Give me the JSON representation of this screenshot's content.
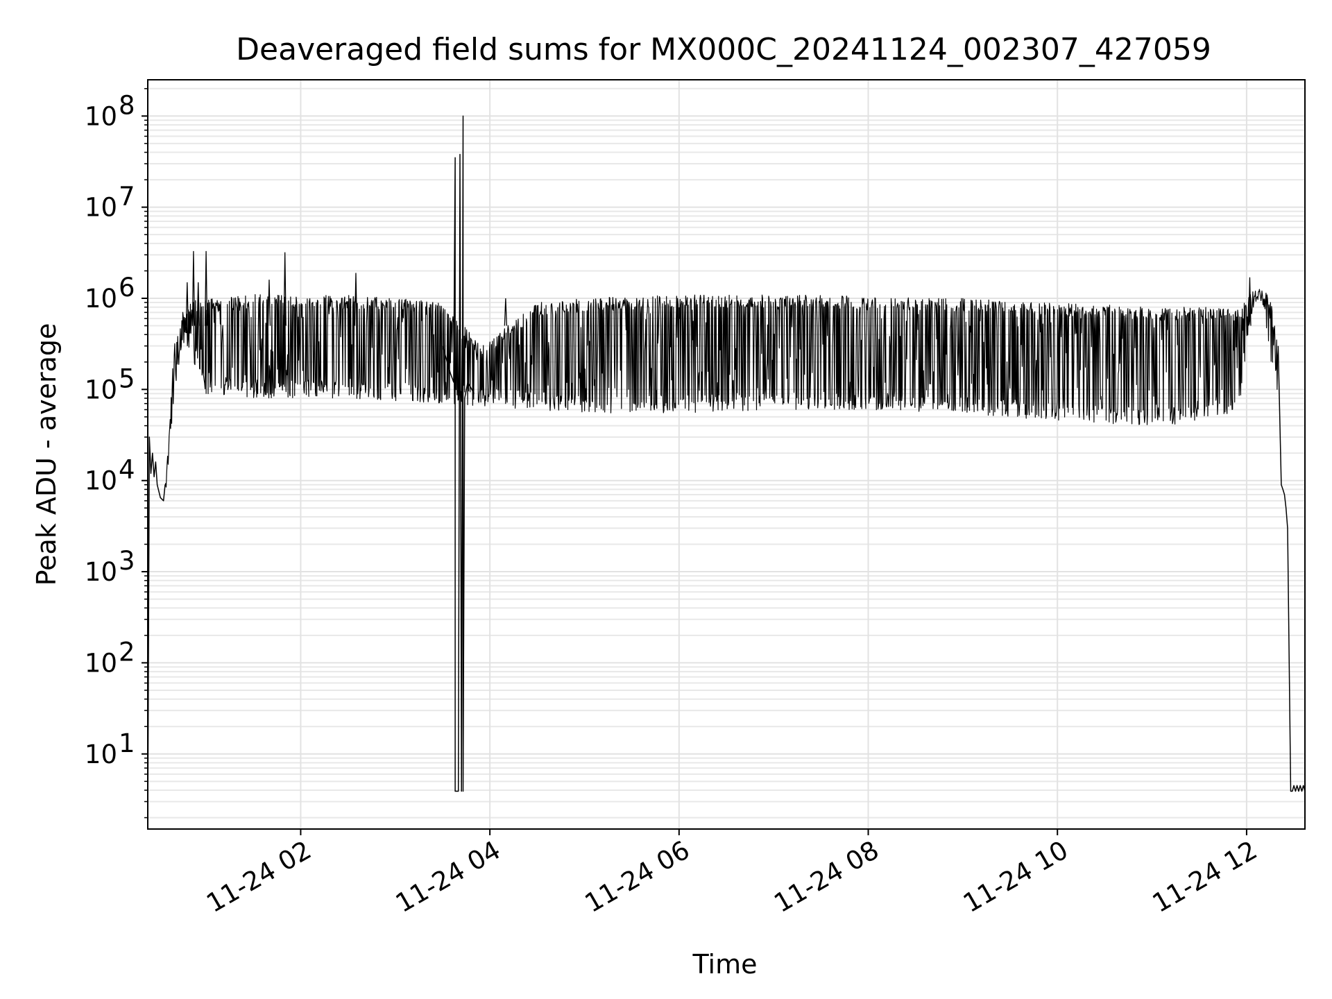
{
  "chart_data": {
    "type": "line",
    "title": "Deaveraged field sums for MX000C_20241124_002307_427059",
    "xlabel": "Time",
    "ylabel": "Peak ADU - average",
    "yscale": "log",
    "grid": true,
    "grid_minor": true,
    "line_color": "#000000",
    "xlim": [
      "2024-11-24 00:23",
      "2024-11-24 12:37"
    ],
    "ylim": [
      1.5,
      250000000
    ],
    "x_ticks": [
      {
        "value": "2024-11-24 02:00",
        "label": "11-24 02"
      },
      {
        "value": "2024-11-24 04:00",
        "label": "11-24 04"
      },
      {
        "value": "2024-11-24 06:00",
        "label": "11-24 06"
      },
      {
        "value": "2024-11-24 08:00",
        "label": "11-24 08"
      },
      {
        "value": "2024-11-24 10:00",
        "label": "11-24 10"
      },
      {
        "value": "2024-11-24 12:00",
        "label": "11-24 12"
      }
    ],
    "y_ticks": [
      {
        "value": 10,
        "base": "10",
        "exp": "1"
      },
      {
        "value": 100,
        "base": "10",
        "exp": "2"
      },
      {
        "value": 1000,
        "base": "10",
        "exp": "3"
      },
      {
        "value": 10000,
        "base": "10",
        "exp": "4"
      },
      {
        "value": 100000,
        "base": "10",
        "exp": "5"
      },
      {
        "value": 1000000,
        "base": "10",
        "exp": "6"
      },
      {
        "value": 10000000,
        "base": "10",
        "exp": "7"
      },
      {
        "value": 100000000,
        "base": "10",
        "exp": "8"
      }
    ],
    "series": [
      {
        "envelope": {
          "x": [
            "2024-11-24 00:34",
            "2024-11-24 00:40",
            "2024-11-24 00:45",
            "2024-11-24 00:50",
            "2024-11-24 00:55",
            "2024-11-24 01:00",
            "2024-11-24 01:30",
            "2024-11-24 02:00",
            "2024-11-24 02:30",
            "2024-11-24 03:00",
            "2024-11-24 03:30",
            "2024-11-24 03:55",
            "2024-11-24 04:30",
            "2024-11-24 05:00",
            "2024-11-24 06:00",
            "2024-11-24 07:00",
            "2024-11-24 08:00",
            "2024-11-24 09:00",
            "2024-11-24 10:00",
            "2024-11-24 10:30",
            "2024-11-24 11:00",
            "2024-11-24 11:30",
            "2024-11-24 11:55",
            "2024-11-24 12:03",
            "2024-11-24 12:10",
            "2024-11-24 12:15",
            "2024-11-24 12:20"
          ],
          "high": [
            9000,
            350000,
            800000,
            950000,
            1000000,
            1000000,
            1100000,
            1100000,
            1100000,
            1000000,
            900000,
            300000,
            900000,
            1000000,
            1100000,
            1100000,
            1050000,
            1000000,
            900000,
            850000,
            800000,
            800000,
            800000,
            1200000,
            1350000,
            1000000,
            300000
          ],
          "low": [
            6000,
            90000,
            300000,
            250000,
            150000,
            90000,
            80000,
            80000,
            80000,
            75000,
            70000,
            65000,
            60000,
            55000,
            55000,
            60000,
            60000,
            55000,
            45000,
            42000,
            40000,
            42000,
            60000,
            600000,
            900000,
            200000,
            80000
          ]
        },
        "segments": [
          {
            "x": [
              "2024-11-24 00:23",
              "2024-11-24 00:23",
              "2024-11-24 00:24",
              "2024-11-24 00:25",
              "2024-11-24 00:26",
              "2024-11-24 00:27",
              "2024-11-24 00:28",
              "2024-11-24 00:29",
              "2024-11-24 00:31",
              "2024-11-24 00:33",
              "2024-11-24 00:34"
            ],
            "y": [
              1.5,
              1.5,
              30000,
              12000,
              20000,
              11000,
              16000,
              9000,
              6500,
              6000,
              9000
            ]
          },
          {
            "x": [
              "2024-11-24 03:30",
              "2024-11-24 03:35",
              "2024-11-24 03:37",
              "2024-11-24 03:38",
              "2024-11-24 03:38",
              "2024-11-24 03:39",
              "2024-11-24 03:40",
              "2024-11-24 03:40",
              "2024-11-24 03:41",
              "2024-11-24 03:42",
              "2024-11-24 03:42",
              "2024-11-24 03:43",
              "2024-11-24 03:43",
              "2024-11-24 03:44",
              "2024-11-24 03:46",
              "2024-11-24 03:50"
            ],
            "y": [
              300000,
              150000,
              120000,
              35000000,
              3.9,
              3.9,
              3.9,
              3.9,
              38000000,
              3.9,
              3.9,
              100000000,
              3.9,
              80000,
              120000,
              90000
            ]
          },
          {
            "x": [
              "2024-11-24 12:20",
              "2024-11-24 12:22",
              "2024-11-24 12:23",
              "2024-11-24 12:24",
              "2024-11-24 12:25",
              "2024-11-24 12:26",
              "2024-11-24 12:27",
              "2024-11-24 12:28",
              "2024-11-24 12:29",
              "2024-11-24 12:30",
              "2024-11-24 12:31",
              "2024-11-24 12:32",
              "2024-11-24 12:33",
              "2024-11-24 12:34",
              "2024-11-24 12:35",
              "2024-11-24 12:36",
              "2024-11-24 12:37"
            ],
            "y": [
              300000,
              9000,
              8000,
              7000,
              5000,
              3000,
              100,
              3.9,
              3.9,
              4.5,
              3.9,
              4.5,
              3.9,
              4.5,
              3.9,
              4.5,
              3.9
            ]
          }
        ],
        "spikes": [
          {
            "x": "2024-11-24 00:48",
            "y": 1500000
          },
          {
            "x": "2024-11-24 00:52",
            "y": 3300000
          },
          {
            "x": "2024-11-24 00:55",
            "y": 1500000
          },
          {
            "x": "2024-11-24 01:00",
            "y": 3300000
          },
          {
            "x": "2024-11-24 01:40",
            "y": 1600000
          },
          {
            "x": "2024-11-24 01:50",
            "y": 3200000
          },
          {
            "x": "2024-11-24 02:35",
            "y": 1900000
          },
          {
            "x": "2024-11-24 04:10",
            "y": 1000000
          },
          {
            "x": "2024-11-24 12:02",
            "y": 1700000
          }
        ]
      }
    ]
  }
}
